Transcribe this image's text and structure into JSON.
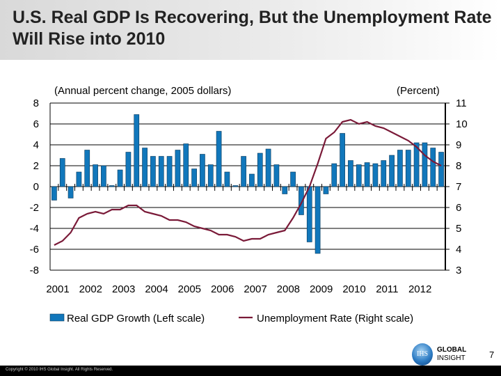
{
  "title": "U.S. Real GDP Is Recovering, But the Unemployment Rate Will Rise into 2010",
  "page_number": "7",
  "copyright": "Copyright © 2010 IHS Global Insight. All Rights Reserved.",
  "logo": {
    "mark": "IHS",
    "text": "GLOBAL INSIGHT"
  },
  "colors": {
    "bars": "#1177bb",
    "line": "#7a1a38",
    "grid": "#000000"
  },
  "chart_data": {
    "type": "bar+line",
    "left_axis_title": "(Annual percent change, 2005 dollars)",
    "right_axis_title": "(Percent)",
    "left_ylim": [
      -8,
      8
    ],
    "left_ticks": [
      "8",
      "6",
      "4",
      "2",
      "0",
      "-2",
      "-4",
      "-6",
      "-8"
    ],
    "right_ylim": [
      3,
      11
    ],
    "right_ticks": [
      "11",
      "10",
      "9",
      "8",
      "7",
      "6",
      "5",
      "4",
      "3"
    ],
    "x_tick_labels": [
      "2001",
      "2002",
      "2003",
      "2004",
      "2005",
      "2006",
      "2007",
      "2008",
      "2009",
      "2010",
      "2011",
      "2012"
    ],
    "grid": true,
    "legend_position": "bottom",
    "series": [
      {
        "name": "Real GDP Growth (Left scale)",
        "type": "bar",
        "axis": "left",
        "values": [
          -1.3,
          2.7,
          -1.1,
          1.4,
          3.5,
          2.1,
          2.0,
          0.1,
          1.6,
          3.3,
          6.9,
          3.7,
          2.9,
          2.9,
          2.9,
          3.5,
          4.1,
          1.7,
          3.1,
          2.1,
          5.3,
          1.4,
          0.1,
          2.9,
          1.2,
          3.2,
          3.6,
          2.1,
          -0.7,
          1.4,
          -2.7,
          -5.3,
          -6.4,
          -0.7,
          2.2,
          5.1,
          2.5,
          2.1,
          2.3,
          2.2,
          2.5,
          3.0,
          3.5,
          3.5,
          4.2,
          4.2,
          3.7,
          3.3
        ]
      },
      {
        "name": "Unemployment Rate (Right scale)",
        "type": "line",
        "axis": "right",
        "values": [
          4.2,
          4.4,
          4.8,
          5.5,
          5.7,
          5.8,
          5.7,
          5.9,
          5.9,
          6.1,
          6.1,
          5.8,
          5.7,
          5.6,
          5.4,
          5.4,
          5.3,
          5.1,
          5.0,
          4.9,
          4.7,
          4.7,
          4.6,
          4.4,
          4.5,
          4.5,
          4.7,
          4.8,
          4.9,
          5.5,
          6.2,
          7.0,
          8.1,
          9.3,
          9.6,
          10.1,
          10.2,
          10.0,
          10.1,
          9.9,
          9.8,
          9.6,
          9.4,
          9.2,
          8.9,
          8.5,
          8.2,
          8.0
        ]
      }
    ]
  }
}
